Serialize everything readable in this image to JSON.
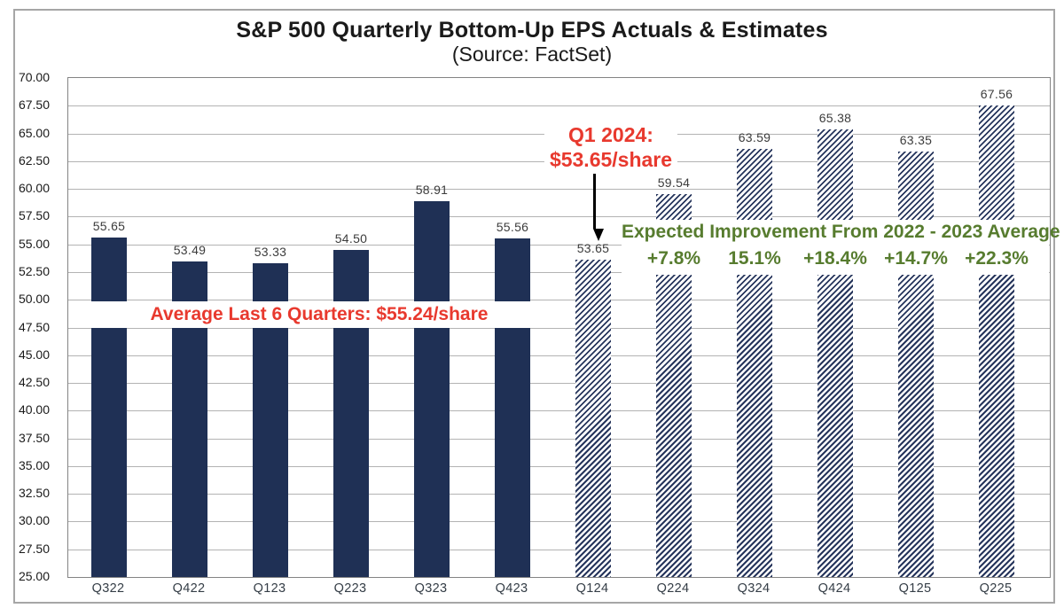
{
  "chart_data": {
    "type": "bar",
    "title": "S&P 500 Quarterly Bottom-Up EPS Actuals & Estimates",
    "subtitle": "(Source: FactSet)",
    "xlabel": "",
    "ylabel": "",
    "ylim": [
      25,
      70
    ],
    "ytick_step": 2.5,
    "grid": true,
    "legend_position": "none",
    "categories": [
      "Q322",
      "Q422",
      "Q123",
      "Q223",
      "Q323",
      "Q423",
      "Q124",
      "Q224",
      "Q324",
      "Q424",
      "Q125",
      "Q225"
    ],
    "values": [
      55.65,
      53.49,
      53.33,
      54.5,
      58.91,
      55.56,
      53.65,
      59.54,
      63.59,
      65.38,
      63.35,
      67.56
    ],
    "actuals_count": 6,
    "bar_styles": {
      "actuals": "solid",
      "estimates": "diagonal-hatch"
    },
    "colors": {
      "bar_navy": "#1f3055",
      "gridline": "#b3b3b3",
      "red_annotation": "#e8392e",
      "green_annotation": "#577c2f",
      "axis_text": "#1a1a1a"
    },
    "annotations": {
      "q1_2024": {
        "line1": "Q1 2024:",
        "line2": "$53.65/share",
        "arrow_target_category": "Q124"
      },
      "average_band": {
        "text": "Average Last 6 Quarters: $55.24/share"
      },
      "improvement": {
        "header": "Expected Improvement From 2022 - 2023 Average",
        "labels": [
          "+7.8%",
          "15.1%",
          "+18.4%",
          "+14.7%",
          "+22.3%"
        ],
        "start_category": "Q224"
      }
    }
  }
}
